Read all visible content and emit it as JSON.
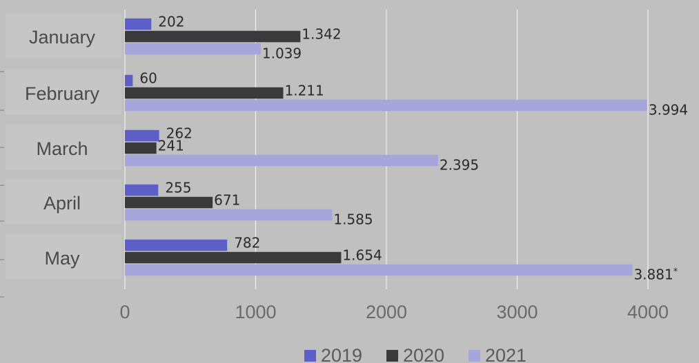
{
  "chart_data": {
    "type": "bar",
    "orientation": "horizontal",
    "categories": [
      "January",
      "February",
      "March",
      "April",
      "May"
    ],
    "series": [
      {
        "name": "2019",
        "color": "#5b5fc7",
        "values": [
          202,
          60,
          262,
          255,
          782
        ],
        "labels": [
          "202",
          "60",
          "262",
          "255",
          "782"
        ]
      },
      {
        "name": "2020",
        "color": "#3a3a3a",
        "values": [
          1342,
          1211,
          241,
          671,
          1654
        ],
        "labels": [
          "1.342",
          "1.211",
          "241",
          "671",
          "1.654"
        ]
      },
      {
        "name": "2021",
        "color": "#a4a6dc",
        "values": [
          1039,
          3994,
          2395,
          1585,
          3881
        ],
        "labels": [
          "1.039",
          "3.994",
          "2.395",
          "1.585",
          "3.881*"
        ]
      }
    ],
    "xlim": [
      0,
      4000
    ],
    "xticks": [
      0,
      1000,
      2000,
      3000,
      4000
    ],
    "xtick_labels": [
      "0",
      "1000",
      "2000",
      "3000",
      "4000"
    ],
    "grid": true,
    "legend_position": "bottom"
  }
}
